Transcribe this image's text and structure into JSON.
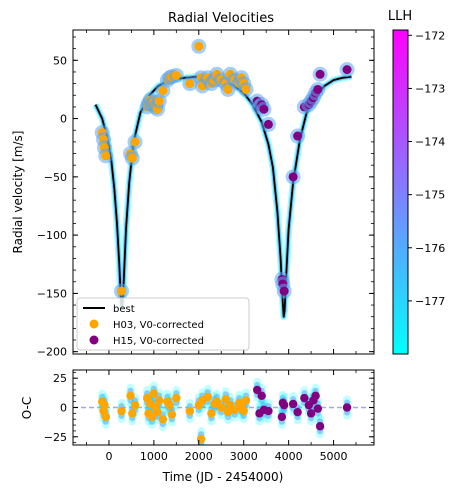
{
  "colors": {
    "best": "#000000",
    "h03": "#ffa500",
    "h15": "#800080",
    "model_band": "#5aa5f0",
    "residual_ref": "#9aaee0",
    "cbar_low": "#00ffff",
    "cbar_high": "#ff00ff"
  },
  "chart_data": [
    {
      "type": "scatter",
      "title": "Radial Velocities",
      "xlabel": "",
      "ylabel": "Radial velocity [m/s]",
      "xlim": [
        -800,
        5900
      ],
      "ylim": [
        -202,
        76
      ],
      "xticks": [
        0,
        1000,
        2000,
        3000,
        4000,
        5000
      ],
      "yticks": [
        -200,
        -150,
        -100,
        -50,
        0,
        50
      ],
      "yticklabels": [
        "−200",
        "−150",
        "−100",
        "−50",
        "0",
        "50"
      ],
      "legend": {
        "placement": "lower-left",
        "entries": [
          "best",
          "H03, V0-corrected",
          "H15, V0-corrected"
        ]
      },
      "model": {
        "name": "best",
        "x": [
          -300,
          -150,
          -50,
          50,
          120,
          180,
          230,
          260,
          280,
          300,
          330,
          380,
          450,
          550,
          700,
          900,
          1100,
          1300,
          1500,
          1700,
          2000,
          2300,
          2600,
          2800,
          3000,
          3200,
          3400,
          3550,
          3650,
          3750,
          3820,
          3870,
          3890,
          3910,
          3940,
          4000,
          4100,
          4250,
          4400,
          4600,
          4800,
          5000,
          5200,
          5400
        ],
        "y": [
          12,
          0,
          -15,
          -35,
          -60,
          -90,
          -125,
          -150,
          -162,
          -160,
          -138,
          -95,
          -55,
          -20,
          5,
          20,
          28,
          32,
          34,
          35,
          36,
          35,
          32,
          28,
          22,
          12,
          -3,
          -22,
          -42,
          -80,
          -120,
          -158,
          -170,
          -165,
          -140,
          -95,
          -55,
          -18,
          5,
          20,
          28,
          33,
          35,
          36
        ]
      },
      "series": [
        {
          "name": "H03, V0-corrected",
          "x": [
            -150,
            -120,
            -100,
            -70,
            280,
            480,
            520,
            580,
            850,
            880,
            920,
            960,
            1000,
            1040,
            1080,
            1120,
            1200,
            1300,
            1350,
            1400,
            1500,
            1800,
            2000,
            2050,
            2080,
            2200,
            2280,
            2350,
            2400,
            2500,
            2600,
            2650,
            2700,
            2800,
            2900,
            2950,
            3000,
            3050
          ],
          "y": [
            -12,
            -18,
            -25,
            -32,
            -148,
            -30,
            -34,
            -20,
            10,
            13,
            16,
            12,
            14,
            10,
            8,
            15,
            24,
            33,
            35,
            36,
            37,
            30,
            62,
            35,
            28,
            35,
            30,
            33,
            38,
            33,
            30,
            25,
            38,
            33,
            30,
            35,
            30,
            25
          ]
        },
        {
          "name": "H15, V0-corrected",
          "x": [
            3300,
            3350,
            3400,
            3450,
            3550,
            3850,
            3870,
            3900,
            4100,
            4200,
            4350,
            4450,
            4500,
            4550,
            4600,
            4650,
            4700,
            5300
          ],
          "y": [
            15,
            10,
            12,
            8,
            -5,
            -138,
            -142,
            -148,
            -50,
            -15,
            10,
            12,
            15,
            18,
            22,
            25,
            38,
            42
          ]
        }
      ]
    },
    {
      "type": "scatter",
      "title": "",
      "xlabel": "Time (JD - 2454000)",
      "ylabel": "O-C",
      "xlim": [
        -800,
        5900
      ],
      "ylim": [
        -32,
        32
      ],
      "xticks": [
        0,
        1000,
        2000,
        3000,
        4000,
        5000
      ],
      "yticks": [
        -25,
        0,
        25
      ],
      "yticklabels": [
        "−25",
        "0",
        "25"
      ],
      "series": [
        {
          "name": "H03, V0-corrected",
          "x": [
            -150,
            -120,
            -100,
            -70,
            280,
            480,
            520,
            580,
            850,
            880,
            920,
            960,
            1000,
            1040,
            1080,
            1120,
            1200,
            1300,
            1350,
            1400,
            1500,
            1800,
            2000,
            2050,
            2080,
            2200,
            2280,
            2350,
            2400,
            2500,
            2600,
            2650,
            2700,
            2800,
            2900,
            2950,
            3000,
            3050
          ],
          "y": [
            5,
            -3,
            2,
            -8,
            -3,
            10,
            -5,
            2,
            8,
            -5,
            3,
            -8,
            12,
            0,
            -4,
            6,
            -10,
            5,
            2,
            -6,
            8,
            -3,
            2,
            -27,
            6,
            9,
            -5,
            3,
            5,
            0,
            7,
            -4,
            2,
            -2,
            4,
            0,
            -3,
            6
          ]
        },
        {
          "name": "H15, V0-corrected",
          "x": [
            3300,
            3350,
            3400,
            3450,
            3550,
            3850,
            3870,
            3900,
            4100,
            4200,
            4350,
            4450,
            4500,
            4550,
            4600,
            4650,
            4700,
            5300
          ],
          "y": [
            15,
            -5,
            10,
            -2,
            -3,
            -8,
            4,
            2,
            3,
            -4,
            8,
            2,
            -5,
            6,
            10,
            -1,
            -16,
            0
          ]
        }
      ]
    },
    {
      "type": "heatmap",
      "title": "LLH",
      "role": "colorbar",
      "range": [
        -178,
        -171.9
      ],
      "ticks": [
        -177,
        -176,
        -175,
        -174,
        -173,
        -172
      ],
      "ticklabels": [
        "−177",
        "−176",
        "−175",
        "−174",
        "−173",
        "−172"
      ]
    }
  ]
}
